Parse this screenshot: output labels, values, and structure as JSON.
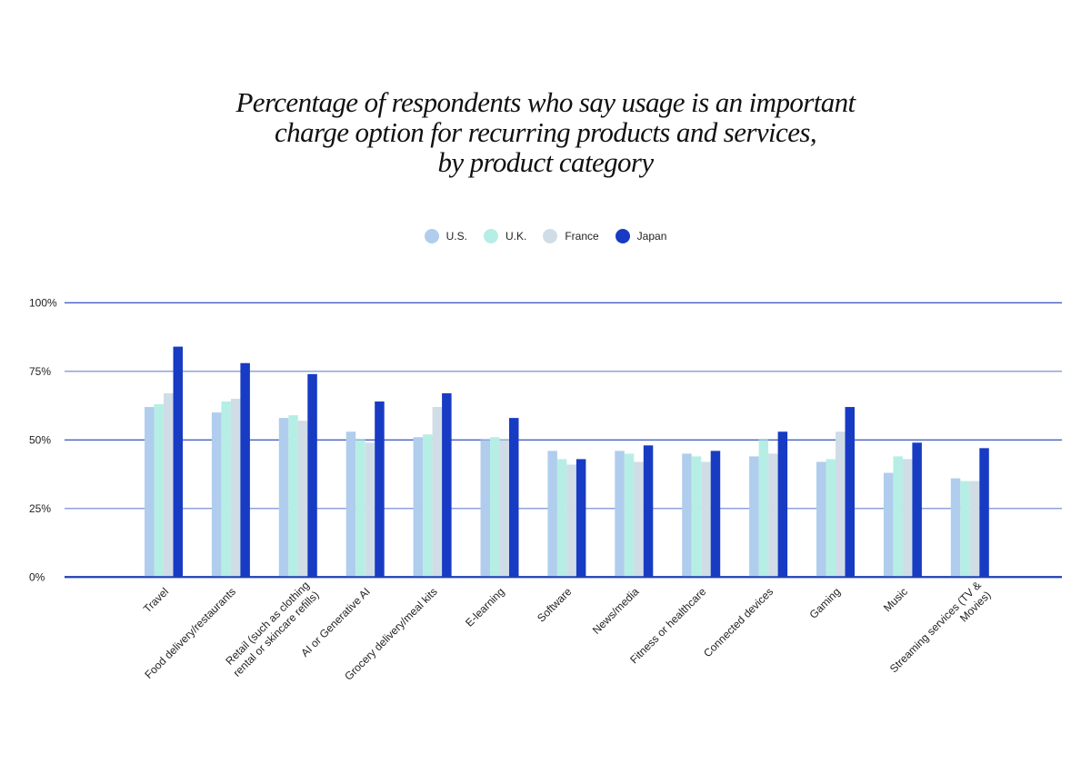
{
  "chart_data": {
    "type": "bar",
    "title_lines": [
      "Percentage of respondents who say usage is an important",
      "charge option for recurring products and services,",
      "by product category"
    ],
    "xlabel": "",
    "ylabel": "",
    "ylim": [
      0,
      100
    ],
    "yticks": [
      {
        "value": 0,
        "label": "0%"
      },
      {
        "value": 25,
        "label": "25%"
      },
      {
        "value": 50,
        "label": "50%"
      },
      {
        "value": 75,
        "label": "75%"
      },
      {
        "value": 100,
        "label": "100%"
      }
    ],
    "grid": true,
    "legend_position": "top-center",
    "categories": [
      [
        "Travel"
      ],
      [
        "Food delivery/restaurants"
      ],
      [
        "Retail (such as clothing",
        "rental or skincare refills)"
      ],
      [
        "AI or Generative AI"
      ],
      [
        "Grocery delivery/meal kits"
      ],
      [
        "E-learning"
      ],
      [
        "Software"
      ],
      [
        "News/media"
      ],
      [
        "Fitness or healthcare"
      ],
      [
        "Connected devices"
      ],
      [
        "Gaming"
      ],
      [
        "Music"
      ],
      [
        "Streaming services (TV &",
        "Movies)"
      ]
    ],
    "series": [
      {
        "name": "U.S.",
        "color": "#B0CDEE",
        "values": [
          62,
          60,
          58,
          53,
          51,
          50,
          46,
          46,
          45,
          44,
          42,
          38,
          36
        ]
      },
      {
        "name": "U.K.",
        "color": "#B6EEE5",
        "values": [
          63,
          64,
          59,
          50,
          52,
          51,
          43,
          45,
          44,
          50,
          43,
          44,
          35
        ]
      },
      {
        "name": "France",
        "color": "#D0DDE6",
        "values": [
          67,
          65,
          57,
          49,
          62,
          50,
          41,
          42,
          42,
          45,
          53,
          43,
          35
        ]
      },
      {
        "name": "Japan",
        "color": "#183BC4",
        "values": [
          84,
          78,
          74,
          64,
          67,
          58,
          43,
          48,
          46,
          53,
          62,
          49,
          47
        ]
      }
    ],
    "gridline_colors": {
      "major": "#1E3FB5",
      "minor": "#8FA2DF"
    }
  }
}
